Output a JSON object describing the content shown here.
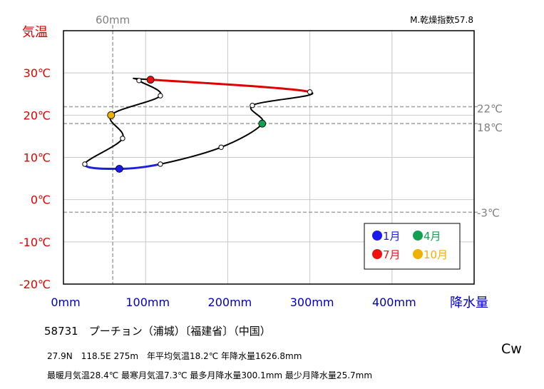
{
  "chart_data": {
    "type": "line",
    "title": "",
    "xlabel": "降水量",
    "ylabel": "気温",
    "xlim": [
      0,
      500
    ],
    "ylim": [
      -20,
      40
    ],
    "x_ticks": [
      0,
      100,
      200,
      300,
      400
    ],
    "x_tick_labels": [
      "0mm",
      "100mm",
      "200mm",
      "300mm",
      "400mm"
    ],
    "y_ticks": [
      30,
      20,
      10,
      0,
      -10,
      -20
    ],
    "y_tick_labels": [
      "30℃",
      "20℃",
      "10℃",
      "0℃",
      "-10℃",
      "-20℃"
    ],
    "grid": true,
    "vertical_reference": {
      "x": 60,
      "label": "60mm"
    },
    "horizontal_references": [
      {
        "y": 22,
        "label": "22℃"
      },
      {
        "y": 18,
        "label": "18℃"
      },
      {
        "y": -3,
        "label": "-3℃"
      }
    ],
    "corner_note": "M.乾燥指数57.8",
    "climograph": [
      {
        "month": 1,
        "x": 68,
        "y": 7.3
      },
      {
        "month": 2,
        "x": 118,
        "y": 8.4
      },
      {
        "month": 3,
        "x": 192,
        "y": 12.4
      },
      {
        "month": 4,
        "x": 242,
        "y": 18.0
      },
      {
        "month": 5,
        "x": 230,
        "y": 22.3
      },
      {
        "month": 6,
        "x": 300,
        "y": 25.5
      },
      {
        "month": 7,
        "x": 106,
        "y": 28.4
      },
      {
        "month": 8,
        "x": 92,
        "y": 28.2
      },
      {
        "month": 9,
        "x": 118,
        "y": 24.6
      },
      {
        "month": 10,
        "x": 58,
        "y": 20.0
      },
      {
        "month": 11,
        "x": 72,
        "y": 14.5
      },
      {
        "month": 12,
        "x": 26,
        "y": 8.4
      }
    ],
    "highlight_segments": [
      {
        "months": [
          12,
          1,
          2
        ],
        "color": "#1f1fdc"
      },
      {
        "months": [
          6,
          7
        ],
        "color": "#e00000"
      }
    ],
    "legend": {
      "placement": "bottom-right",
      "items": [
        {
          "label": "1月",
          "month": 1,
          "color": "#1a1aee"
        },
        {
          "label": "4月",
          "month": 4,
          "color": "#10a050"
        },
        {
          "label": "7月",
          "month": 7,
          "color": "#ee1111"
        },
        {
          "label": "10月",
          "month": 10,
          "color": "#f0b000"
        }
      ]
    }
  },
  "station": {
    "heading": "58731　プーチョン（浦城）〔福建省〕（中国）",
    "info_line1": "27.9N　118.5E 275m　年平均気温18.2℃ 年降水量1626.8mm",
    "info_line2": "最暖月気温28.4℃ 最寒月気温7.3℃ 最多月降水量300.1mm 最少月降水量25.7mm",
    "climate_code": "Cw"
  },
  "colors": {
    "temp_axis": "#e00000",
    "precip_axis": "#0000c0",
    "grid": "#c8c8c8",
    "reference": "#a0a0a0",
    "curve": "#000000"
  }
}
